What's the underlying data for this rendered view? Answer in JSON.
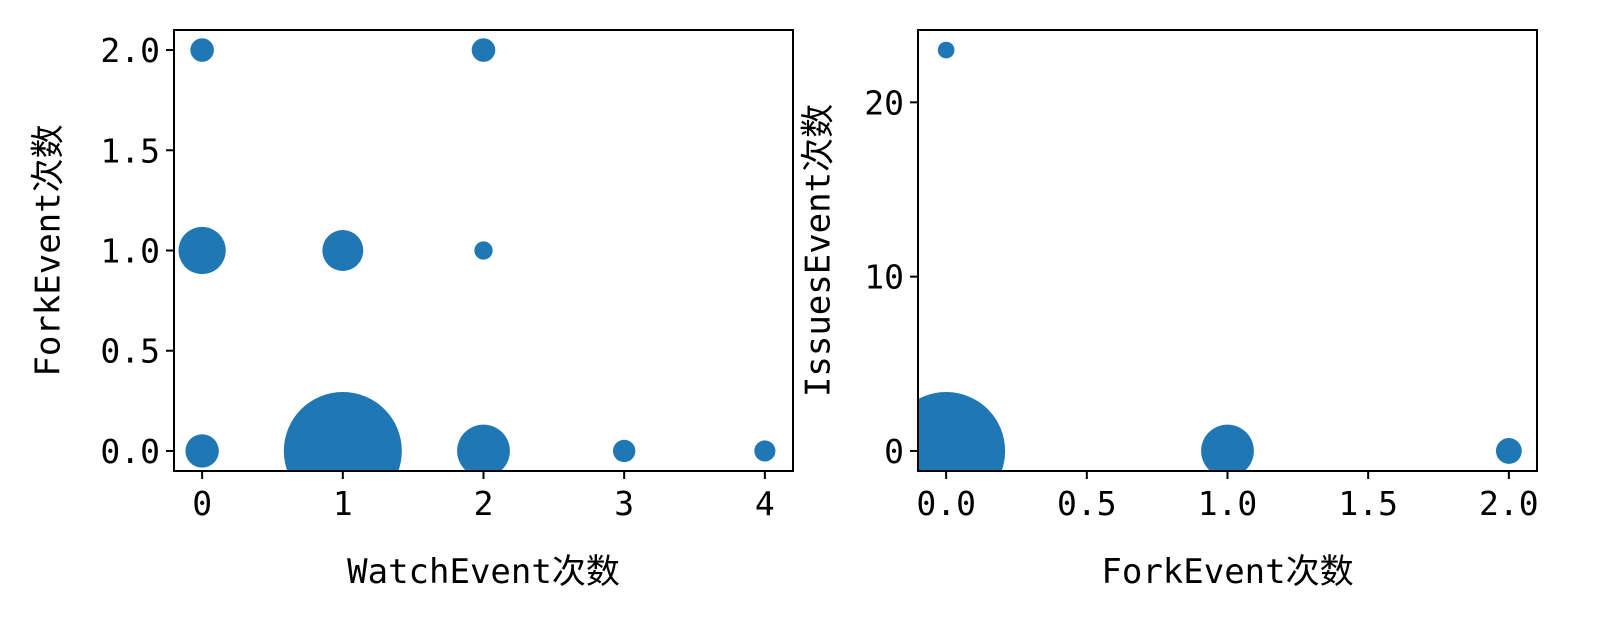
{
  "chart_data": [
    {
      "type": "scatter",
      "title": "",
      "xlabel": "WatchEvent次数",
      "ylabel": "ForkEvent次数",
      "xlim": [
        -0.2,
        4.2
      ],
      "ylim": [
        -0.1,
        2.1
      ],
      "xticks": [
        0,
        1,
        2,
        3,
        4
      ],
      "xtick_labels": [
        "0",
        "1",
        "2",
        "3",
        "4"
      ],
      "yticks": [
        0.0,
        0.5,
        1.0,
        1.5,
        2.0
      ],
      "ytick_labels": [
        "0.0",
        "0.5",
        "1.0",
        "1.5",
        "2.0"
      ],
      "color": "#1f77b4",
      "grid": false,
      "points": [
        {
          "x": 0,
          "y": 2,
          "size": 1
        },
        {
          "x": 2,
          "y": 2,
          "size": 1
        },
        {
          "x": 0,
          "y": 1,
          "size": 4
        },
        {
          "x": 1,
          "y": 1,
          "size": 3
        },
        {
          "x": 2,
          "y": 1,
          "size": 0.6
        },
        {
          "x": 0,
          "y": 0,
          "size": 2
        },
        {
          "x": 1,
          "y": 0,
          "size": 25
        },
        {
          "x": 2,
          "y": 0,
          "size": 5
        },
        {
          "x": 3,
          "y": 0,
          "size": 0.9
        },
        {
          "x": 4,
          "y": 0,
          "size": 0.8
        }
      ]
    },
    {
      "type": "scatter",
      "title": "",
      "xlabel": "ForkEvent次数",
      "ylabel": "IssuesEvent次数",
      "xlim": [
        -0.1,
        2.1
      ],
      "ylim": [
        -1.15,
        24.15
      ],
      "xticks": [
        0.0,
        0.5,
        1.0,
        1.5,
        2.0
      ],
      "xtick_labels": [
        "0.0",
        "0.5",
        "1.0",
        "1.5",
        "2.0"
      ],
      "yticks": [
        0,
        10,
        20
      ],
      "ytick_labels": [
        "0",
        "10",
        "20"
      ],
      "color": "#1f77b4",
      "grid": false,
      "points": [
        {
          "x": 0,
          "y": 23,
          "size": 0.5
        },
        {
          "x": 0,
          "y": 0,
          "size": 25
        },
        {
          "x": 1,
          "y": 0,
          "size": 5
        },
        {
          "x": 2,
          "y": 0,
          "size": 1.2
        }
      ]
    }
  ]
}
